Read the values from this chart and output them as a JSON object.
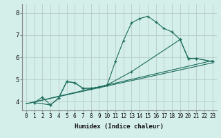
{
  "bg_color": "#d4eeea",
  "grid_color": "#b8ccc8",
  "line_color": "#1a6b5a",
  "xlabel": "Humidex (Indice chaleur)",
  "xlim": [
    -0.5,
    23.5
  ],
  "ylim": [
    3.6,
    8.4
  ],
  "xticks": [
    0,
    1,
    2,
    3,
    4,
    5,
    6,
    7,
    8,
    9,
    10,
    11,
    12,
    13,
    14,
    15,
    16,
    17,
    18,
    19,
    20,
    21,
    22,
    23
  ],
  "yticks": [
    4,
    5,
    6,
    7,
    8
  ],
  "lines": [
    {
      "x": [
        1,
        2,
        3,
        4,
        5,
        6,
        7,
        8,
        9,
        10,
        11,
        12,
        13,
        14,
        15,
        16,
        17,
        18,
        19,
        20,
        21,
        23
      ],
      "y": [
        3.95,
        4.2,
        3.85,
        4.15,
        4.9,
        4.85,
        4.6,
        4.6,
        4.65,
        4.75,
        5.8,
        6.75,
        7.55,
        7.75,
        7.85,
        7.6,
        7.3,
        7.15,
        6.8,
        5.95,
        5.95,
        5.8
      ],
      "marker": true
    },
    {
      "x": [
        1,
        3,
        4,
        5,
        6,
        7,
        8,
        9,
        10,
        13,
        19,
        20,
        21,
        23
      ],
      "y": [
        3.95,
        3.85,
        4.15,
        4.9,
        4.85,
        4.6,
        4.6,
        4.65,
        4.75,
        5.35,
        6.8,
        5.95,
        5.95,
        5.8
      ],
      "marker": true
    },
    {
      "x": [
        0,
        23
      ],
      "y": [
        3.9,
        5.85
      ],
      "marker": false
    },
    {
      "x": [
        0,
        23
      ],
      "y": [
        3.9,
        5.75
      ],
      "marker": false
    }
  ],
  "xlabel_fontsize": 6.5,
  "xlabel_fontweight": "bold",
  "tick_fontsize_x": 5.5,
  "tick_fontsize_y": 6.5
}
